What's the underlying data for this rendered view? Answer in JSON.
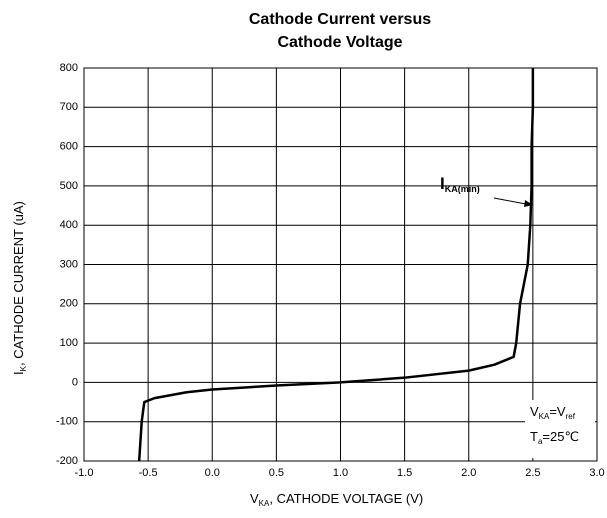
{
  "chart_data": {
    "type": "line",
    "title_lines": [
      "Cathode Current versus",
      "Cathode Voltage"
    ],
    "x_label": {
      "symbol": "V",
      "sub": "KA",
      "text": ", CATHODE VOLTAGE    (V)"
    },
    "y_label": {
      "symbol": "I",
      "sub": "K",
      "text": ", CATHODE CURRENT    (uA)"
    },
    "annotation": {
      "symbol": "I",
      "sub": "KA(min)"
    },
    "conditions": [
      {
        "a": "V",
        "a_sub": "KA",
        "b": "=V",
        "b_sub": "ref"
      },
      {
        "a": "T",
        "a_sub": "a",
        "b": "=25℃"
      }
    ],
    "x": [
      -0.57,
      -0.55,
      -0.53,
      -0.45,
      -0.2,
      0,
      0.5,
      1.0,
      1.5,
      2.0,
      2.2,
      2.35,
      2.37,
      2.4,
      2.43,
      2.46,
      2.48,
      2.49,
      2.49,
      2.5,
      2.5
    ],
    "series": [
      {
        "name": "IK",
        "color": "#000000",
        "values": [
          -200,
          -100,
          -50,
          -40,
          -25,
          -18,
          -8,
          0,
          12,
          30,
          45,
          65,
          100,
          200,
          250,
          300,
          400,
          500,
          600,
          700,
          800
        ]
      }
    ],
    "xlim": [
      -1.0,
      3.0
    ],
    "xticks": [
      {
        "value": -1.0,
        "label": "-1.0"
      },
      -0.5,
      {
        "value": 0,
        "label": "0.0"
      },
      0.5,
      {
        "value": 1,
        "label": "1.0"
      },
      1.5,
      {
        "value": 2,
        "label": "2.0"
      },
      2.5,
      {
        "value": 3,
        "label": "3.0"
      }
    ],
    "ylim": [
      -200,
      800
    ],
    "yticks": [
      -200,
      -100,
      0,
      100,
      200,
      300,
      400,
      500,
      600,
      700,
      800
    ],
    "grid": true
  }
}
